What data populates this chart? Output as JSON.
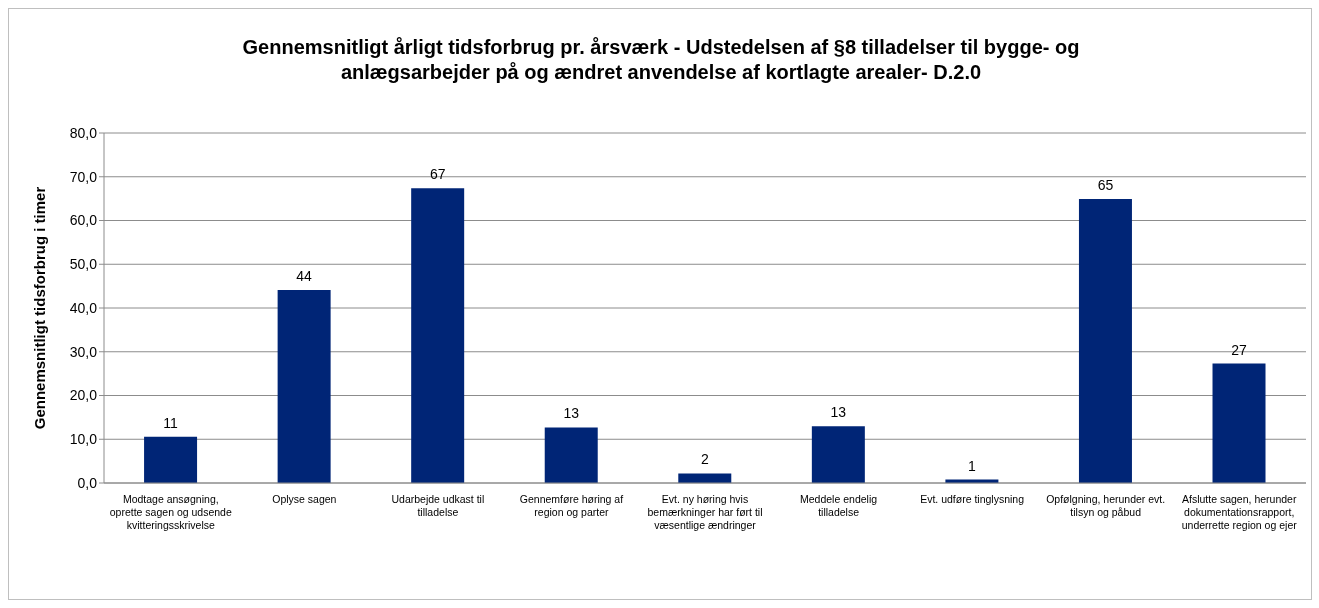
{
  "chart_data": {
    "type": "bar",
    "title": "Gennemsnitligt årligt tidsforbrug pr. årsværk - Udstedelsen af §8 tilladelser til bygge- og anlægsarbejder på og ændret anvendelse af kortlagte arealer- D.2.0",
    "ylabel": "Gennemsnitligt tidsforbrug i timer",
    "categories": [
      "Modtage ansøgning, oprette sagen og udsende kvitteringsskrivelse",
      "Oplyse sagen",
      "Udarbejde udkast til tilladelse",
      "Gennemføre høring af region og parter",
      "Evt. ny høring hvis bemærkninger har ført til væsentlige ændringer",
      "Meddele endelig tilladelse",
      "Evt. udføre tinglysning",
      "Opfølgning, herunder evt. tilsyn og påbud",
      "Afslutte sagen, herunder dokumentationsrapport, underrette region og ejer"
    ],
    "values": [
      10.6,
      44.1,
      67.4,
      12.7,
      2.2,
      13.0,
      0.8,
      64.9,
      27.3
    ],
    "value_labels": [
      "11",
      "44",
      "67",
      "13",
      "2",
      "13",
      "1",
      "65",
      "27"
    ],
    "color": "#002576",
    "ylim": [
      0,
      80
    ],
    "yticks": [
      {
        "value": 0,
        "label": "0,0"
      },
      {
        "value": 10,
        "label": "10,0"
      },
      {
        "value": 20,
        "label": "20,0"
      },
      {
        "value": 30,
        "label": "30,0"
      },
      {
        "value": 40,
        "label": "40,0"
      },
      {
        "value": 50,
        "label": "50,0"
      },
      {
        "value": 60,
        "label": "60,0"
      },
      {
        "value": 70,
        "label": "70,0"
      },
      {
        "value": 80,
        "label": "80,0"
      }
    ],
    "grid": "y"
  }
}
